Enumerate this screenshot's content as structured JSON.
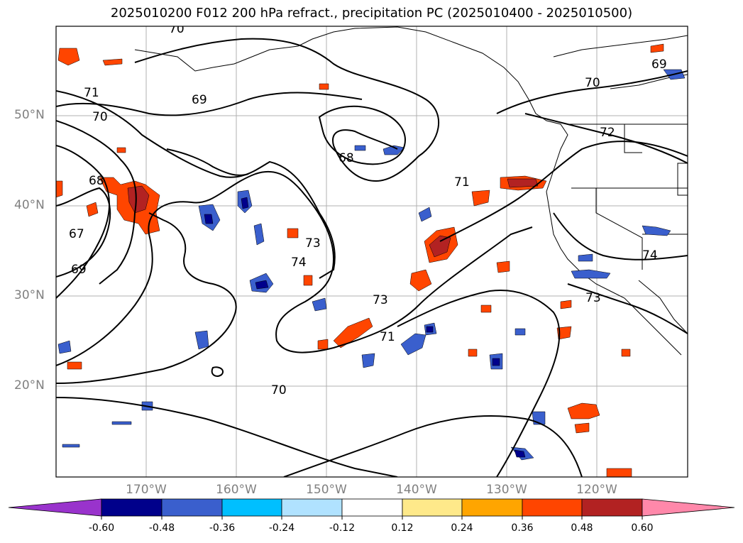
{
  "title": "2025010200 F012 200 hPa refract., precipitation PC (2025010400 - 2025010500)",
  "lat_labels": [
    "50°N",
    "40°N",
    "30°N",
    "20°N"
  ],
  "lon_labels": [
    "170°W",
    "160°W",
    "150°W",
    "140°W",
    "130°W",
    "120°W"
  ],
  "contour_labels": [
    "70",
    "71",
    "70",
    "69",
    "68",
    "67",
    "69",
    "68",
    "71",
    "70",
    "72",
    "69",
    "74",
    "73",
    "73",
    "71",
    "70",
    "73",
    "74"
  ],
  "colorbar": {
    "colors": [
      "#9933cc",
      "#00008b",
      "#3a5fcd",
      "#00bfff",
      "#b0e2ff",
      "#ffffff",
      "#fee98a",
      "#ffa500",
      "#ff4500",
      "#b22222",
      "#ff88aa"
    ],
    "tick_labels": [
      "-0.60",
      "-0.48",
      "-0.36",
      "-0.24",
      "-0.12",
      "0.12",
      "0.24",
      "0.36",
      "0.48",
      "0.60"
    ]
  }
}
